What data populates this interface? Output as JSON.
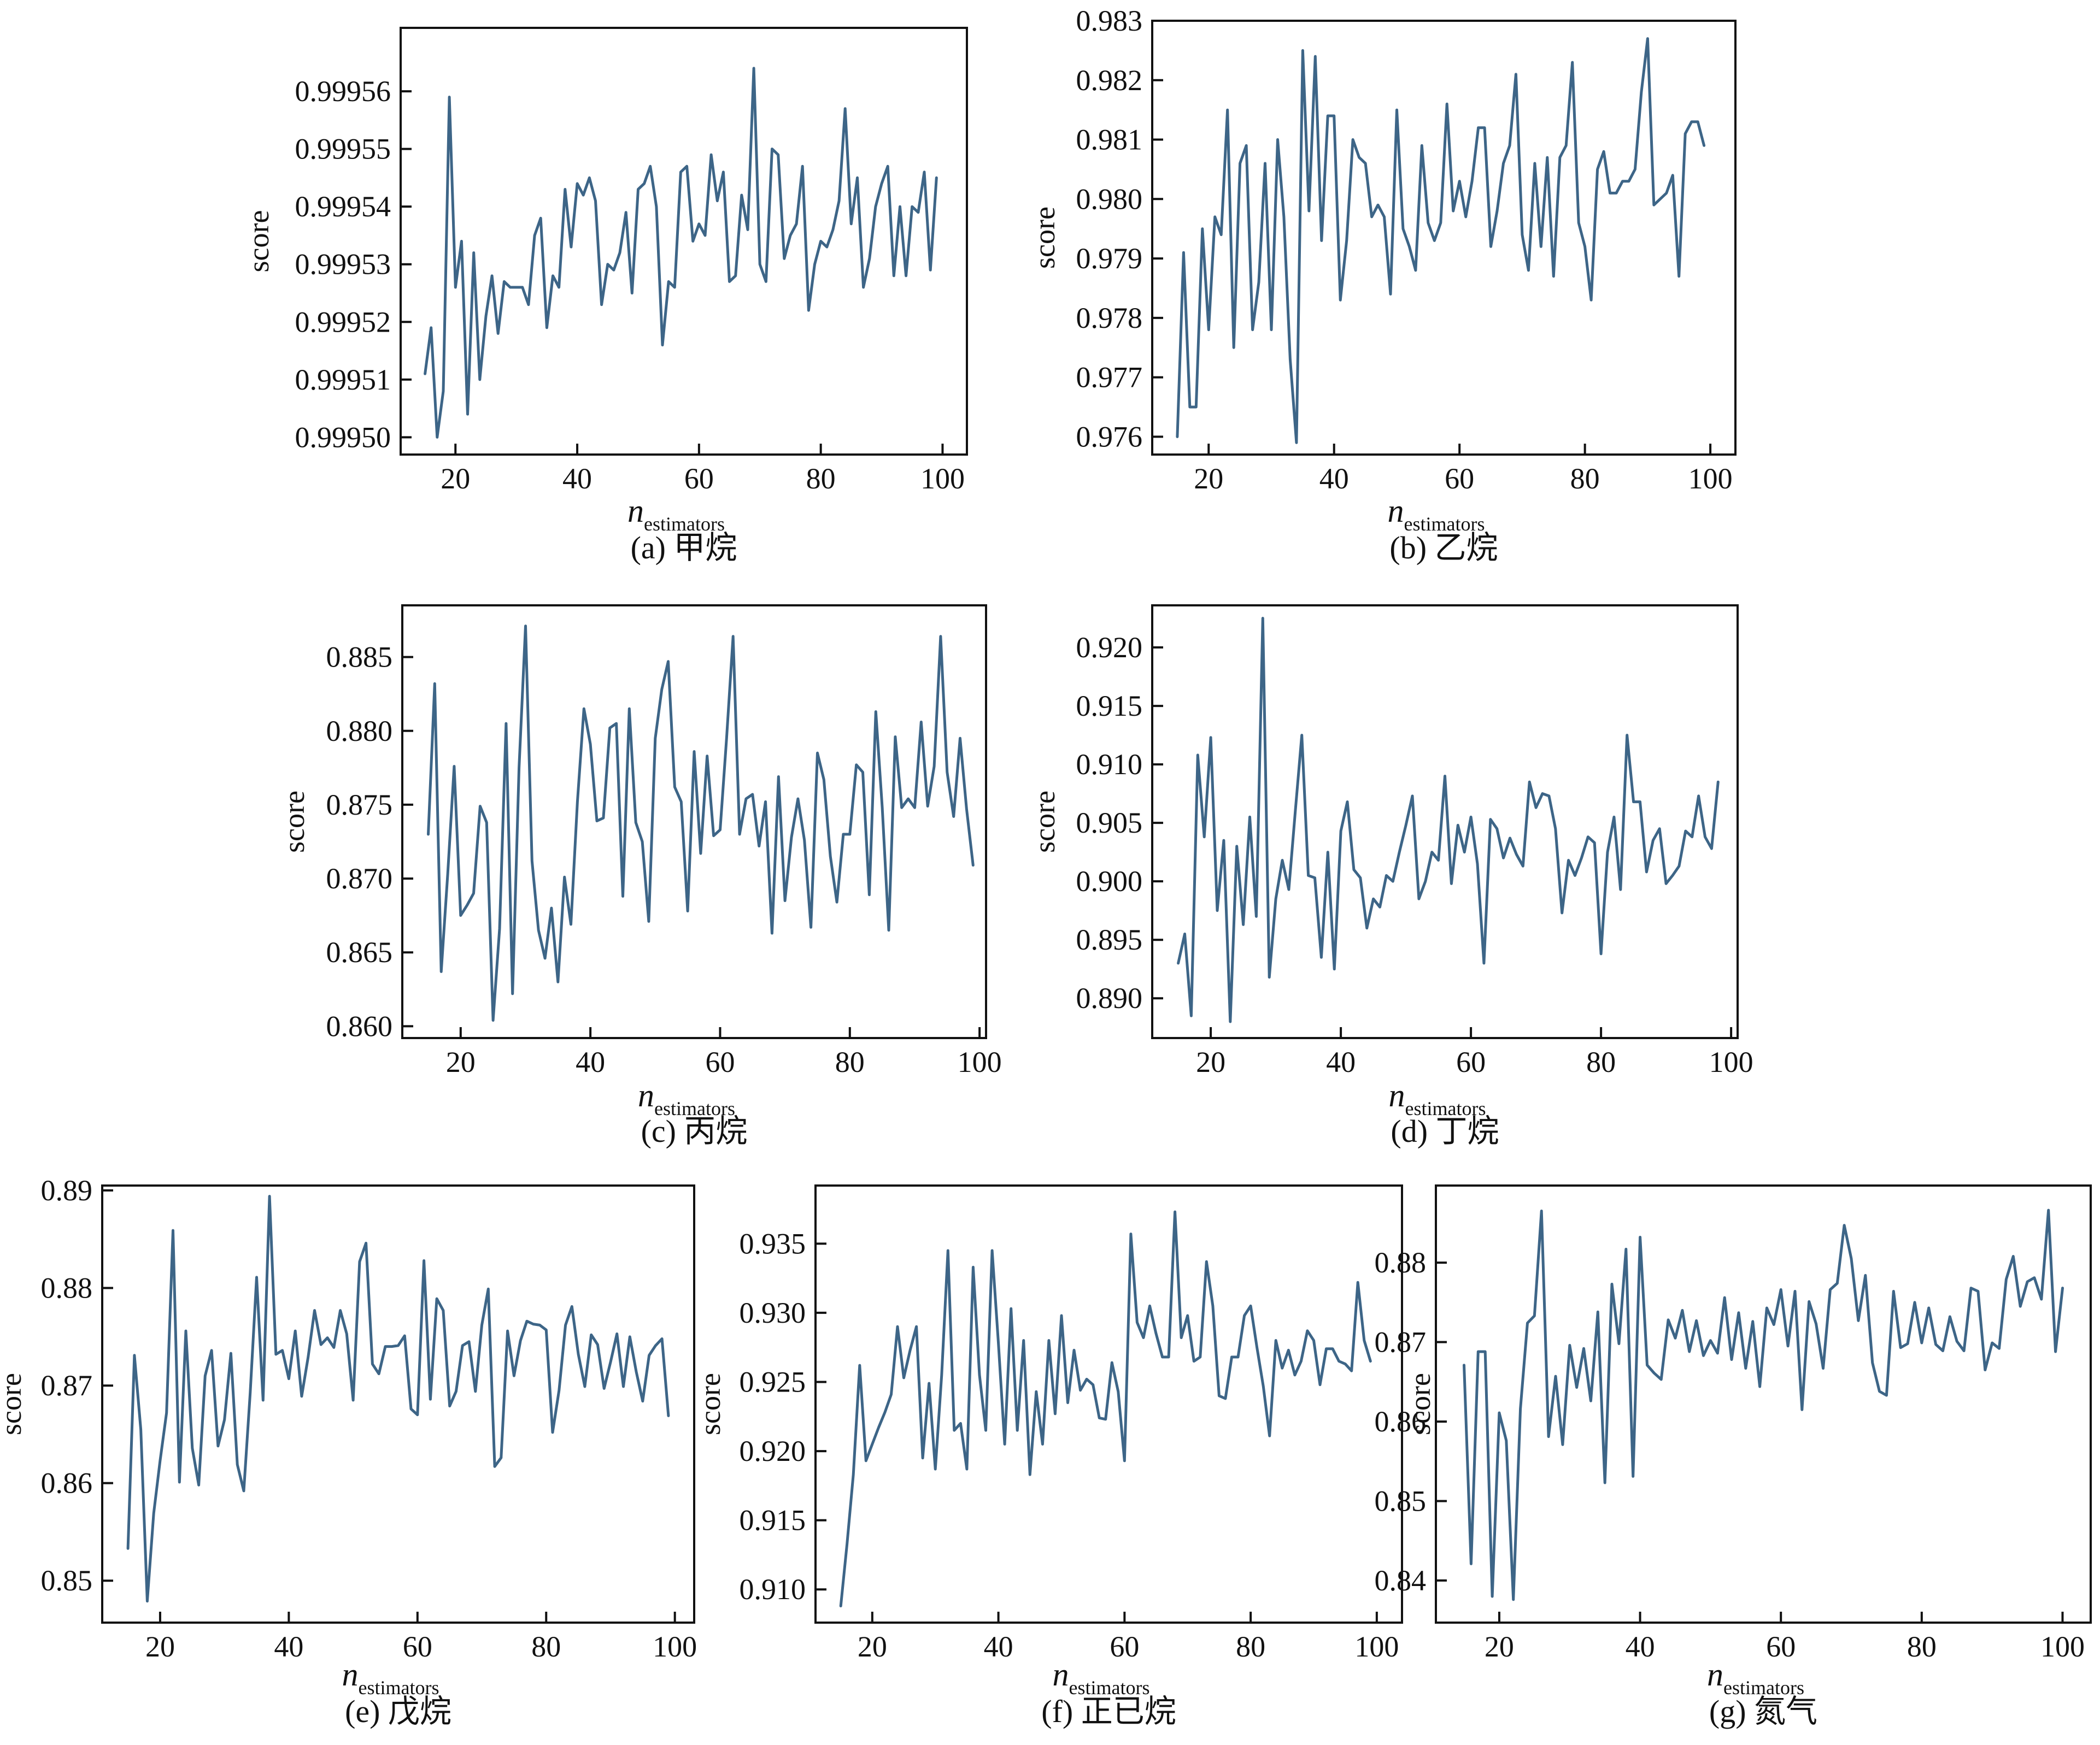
{
  "figure": {
    "background": "#ffffff",
    "series_color": "#3d6587"
  },
  "chart_data": [
    {
      "id": "a",
      "type": "line",
      "caption": "(a) 甲烷",
      "ylabel": "score",
      "xlabel": "n",
      "xlabel_sub": "estimators",
      "xlim": [
        11,
        104
      ],
      "ylim": [
        0.999497,
        0.999571
      ],
      "xticks": [
        20,
        40,
        60,
        80,
        100
      ],
      "xtick_labels": [
        "20",
        "40",
        "60",
        "80",
        "100"
      ],
      "yticks": [
        0.9995,
        0.99951,
        0.99952,
        0.99953,
        0.99954,
        0.99955,
        0.99956
      ],
      "ytick_labels": [
        "0.99950",
        "0.99951",
        "0.99952",
        "0.99953",
        "0.99954",
        "0.99955",
        "0.99956"
      ],
      "series": [
        {
          "name": "score",
          "x_start": 15,
          "values": [
            0.999511,
            0.999519,
            0.9995,
            0.999508,
            0.999559,
            0.999526,
            0.999534,
            0.999504,
            0.999532,
            0.99951,
            0.999521,
            0.999528,
            0.999518,
            0.999527,
            0.999526,
            0.999526,
            0.999526,
            0.999523,
            0.999535,
            0.999538,
            0.999519,
            0.999528,
            0.999526,
            0.999543,
            0.999533,
            0.999544,
            0.999542,
            0.999545,
            0.999541,
            0.999523,
            0.99953,
            0.999529,
            0.999532,
            0.999539,
            0.999525,
            0.999543,
            0.999544,
            0.999547,
            0.99954,
            0.999516,
            0.999527,
            0.999526,
            0.999546,
            0.999547,
            0.999534,
            0.999537,
            0.999535,
            0.999549,
            0.999541,
            0.999546,
            0.999527,
            0.999528,
            0.999542,
            0.999536,
            0.999564,
            0.99953,
            0.999527,
            0.99955,
            0.999549,
            0.999531,
            0.999535,
            0.999537,
            0.999547,
            0.999522,
            0.99953,
            0.999534,
            0.999533,
            0.999536,
            0.999541,
            0.999557,
            0.999537,
            0.999545,
            0.999526,
            0.999531,
            0.99954,
            0.999544,
            0.999547,
            0.999528,
            0.99954,
            0.999528,
            0.99954,
            0.999539,
            0.999546,
            0.999529,
            0.999545
          ]
        }
      ]
    },
    {
      "id": "b",
      "type": "line",
      "caption": "(b) 乙烷",
      "ylabel": "score",
      "xlabel": "n",
      "xlabel_sub": "estimators",
      "xlim": [
        11,
        104
      ],
      "ylim": [
        0.9757,
        0.983
      ],
      "xticks": [
        20,
        40,
        60,
        80,
        100
      ],
      "xtick_labels": [
        "20",
        "40",
        "60",
        "80",
        "100"
      ],
      "yticks": [
        0.976,
        0.977,
        0.978,
        0.979,
        0.98,
        0.981,
        0.982,
        0.983
      ],
      "ytick_labels": [
        "0.976",
        "0.977",
        "0.978",
        "0.979",
        "0.980",
        "0.981",
        "0.982",
        "0.983"
      ],
      "series": [
        {
          "name": "score",
          "x_start": 15,
          "values": [
            0.976,
            0.9791,
            0.9765,
            0.9765,
            0.9795,
            0.9778,
            0.9797,
            0.9794,
            0.9815,
            0.9775,
            0.9806,
            0.9809,
            0.9778,
            0.9786,
            0.9806,
            0.9778,
            0.981,
            0.9797,
            0.9773,
            0.9759,
            0.9825,
            0.9798,
            0.9824,
            0.9793,
            0.9814,
            0.9814,
            0.9783,
            0.9793,
            0.981,
            0.9807,
            0.9806,
            0.9797,
            0.9799,
            0.9797,
            0.9784,
            0.9815,
            0.9795,
            0.9792,
            0.9788,
            0.9809,
            0.9796,
            0.9793,
            0.9796,
            0.9816,
            0.9798,
            0.9803,
            0.9797,
            0.9803,
            0.9812,
            0.9812,
            0.9792,
            0.9798,
            0.9806,
            0.9809,
            0.9821,
            0.9794,
            0.9788,
            0.9806,
            0.9792,
            0.9807,
            0.9787,
            0.9807,
            0.9809,
            0.9823,
            0.9796,
            0.9792,
            0.9783,
            0.9805,
            0.9808,
            0.9801,
            0.9801,
            0.9803,
            0.9803,
            0.9805,
            0.9818,
            0.9827,
            0.9799,
            0.98,
            0.9801,
            0.9804,
            0.9787,
            0.9811,
            0.9813,
            0.9813,
            0.9809
          ]
        }
      ]
    },
    {
      "id": "c",
      "type": "line",
      "caption": "(c) 丙烷",
      "ylabel": "score",
      "xlabel": "n",
      "xlabel_sub": "estimators",
      "xlim": [
        11,
        101
      ],
      "ylim": [
        0.8592,
        0.8885
      ],
      "xticks": [
        20,
        40,
        60,
        80,
        100
      ],
      "xtick_labels": [
        "20",
        "40",
        "60",
        "80",
        "100"
      ],
      "yticks": [
        0.86,
        0.865,
        0.87,
        0.875,
        0.88,
        0.885
      ],
      "ytick_labels": [
        "0.860",
        "0.865",
        "0.870",
        "0.875",
        "0.880",
        "0.885"
      ],
      "series": [
        {
          "name": "score",
          "x_start": 15,
          "values": [
            0.873,
            0.8832,
            0.8637,
            0.8703,
            0.8776,
            0.8675,
            0.8682,
            0.869,
            0.8749,
            0.8738,
            0.8604,
            0.8666,
            0.8805,
            0.8622,
            0.8775,
            0.8871,
            0.8712,
            0.8665,
            0.8646,
            0.868,
            0.863,
            0.8701,
            0.8669,
            0.8752,
            0.8815,
            0.8791,
            0.8739,
            0.8741,
            0.8802,
            0.8805,
            0.8688,
            0.8815,
            0.8738,
            0.8725,
            0.8671,
            0.8795,
            0.8828,
            0.8847,
            0.8762,
            0.8752,
            0.8678,
            0.8786,
            0.8717,
            0.8783,
            0.8729,
            0.8733,
            0.8795,
            0.8864,
            0.873,
            0.8754,
            0.8757,
            0.8722,
            0.8752,
            0.8663,
            0.8769,
            0.8685,
            0.8728,
            0.8754,
            0.8726,
            0.8667,
            0.8785,
            0.8767,
            0.8715,
            0.8684,
            0.873,
            0.873,
            0.8777,
            0.8772,
            0.8689,
            0.8813,
            0.8748,
            0.8665,
            0.8796,
            0.8748,
            0.8754,
            0.8748,
            0.8806,
            0.8749,
            0.8776,
            0.8864,
            0.8772,
            0.8742,
            0.8795,
            0.8747,
            0.8709
          ]
        }
      ]
    },
    {
      "id": "d",
      "type": "line",
      "caption": "(d) 丁烷",
      "ylabel": "score",
      "xlabel": "n",
      "xlabel_sub": "estimators",
      "xlim": [
        11,
        101
      ],
      "ylim": [
        0.8866,
        0.9236
      ],
      "xticks": [
        20,
        40,
        60,
        80,
        100
      ],
      "xtick_labels": [
        "20",
        "40",
        "60",
        "80",
        "100"
      ],
      "yticks": [
        0.89,
        0.895,
        0.9,
        0.905,
        0.91,
        0.915,
        0.92
      ],
      "ytick_labels": [
        "0.890",
        "0.895",
        "0.900",
        "0.905",
        "0.910",
        "0.915",
        "0.920"
      ],
      "series": [
        {
          "name": "score",
          "x_start": 15,
          "values": [
            0.893,
            0.8955,
            0.8885,
            0.9108,
            0.9038,
            0.9123,
            0.8975,
            0.9035,
            0.888,
            0.903,
            0.8963,
            0.9055,
            0.897,
            0.9225,
            0.8918,
            0.8985,
            0.9018,
            0.8993,
            0.906,
            0.9125,
            0.9005,
            0.9003,
            0.8935,
            0.9025,
            0.8925,
            0.9043,
            0.9068,
            0.901,
            0.9003,
            0.896,
            0.8985,
            0.8978,
            0.9005,
            0.9,
            0.9025,
            0.9048,
            0.9073,
            0.8985,
            0.9,
            0.9025,
            0.9018,
            0.909,
            0.8998,
            0.9048,
            0.9025,
            0.9055,
            0.9015,
            0.893,
            0.9053,
            0.9045,
            0.902,
            0.9037,
            0.9023,
            0.9013,
            0.9085,
            0.9063,
            0.9075,
            0.9073,
            0.9045,
            0.8973,
            0.9018,
            0.9005,
            0.902,
            0.9038,
            0.9033,
            0.8938,
            0.9025,
            0.9055,
            0.8993,
            0.9125,
            0.9068,
            0.9068,
            0.9008,
            0.9035,
            0.9045,
            0.8998,
            0.9005,
            0.9013,
            0.9043,
            0.9038,
            0.9073,
            0.9038,
            0.9028,
            0.9085
          ]
        }
      ]
    },
    {
      "id": "e",
      "type": "line",
      "caption": "(e) 戊烷",
      "ylabel": "score",
      "xlabel": "n",
      "xlabel_sub": "estimators",
      "xlim": [
        11,
        103
      ],
      "ylim": [
        0.8457,
        0.8905
      ],
      "xticks": [
        20,
        40,
        60,
        80,
        100
      ],
      "xtick_labels": [
        "20",
        "40",
        "60",
        "80",
        "100"
      ],
      "yticks": [
        0.85,
        0.86,
        0.87,
        0.88,
        0.89
      ],
      "ytick_labels": [
        "0.85",
        "0.86",
        "0.87",
        "0.88",
        "0.89"
      ],
      "series": [
        {
          "name": "score",
          "x_start": 15,
          "values": [
            0.8533,
            0.8731,
            0.8655,
            0.8479,
            0.8569,
            0.8623,
            0.8672,
            0.8859,
            0.8601,
            0.8756,
            0.8636,
            0.8598,
            0.871,
            0.8736,
            0.8638,
            0.8665,
            0.8733,
            0.8619,
            0.8592,
            0.8693,
            0.8811,
            0.8685,
            0.8894,
            0.8732,
            0.8736,
            0.8707,
            0.8756,
            0.8689,
            0.8729,
            0.8777,
            0.8742,
            0.8749,
            0.8739,
            0.8777,
            0.8753,
            0.8685,
            0.8827,
            0.8846,
            0.8722,
            0.8712,
            0.874,
            0.874,
            0.8741,
            0.8751,
            0.8676,
            0.867,
            0.8828,
            0.8686,
            0.8789,
            0.8777,
            0.8679,
            0.8694,
            0.8741,
            0.8745,
            0.8694,
            0.8762,
            0.8799,
            0.8617,
            0.8626,
            0.8756,
            0.871,
            0.8746,
            0.8766,
            0.8763,
            0.8762,
            0.8757,
            0.8652,
            0.8695,
            0.8762,
            0.8781,
            0.8732,
            0.8699,
            0.8752,
            0.8742,
            0.8697,
            0.8724,
            0.8753,
            0.8699,
            0.875,
            0.8714,
            0.8684,
            0.8731,
            0.8741,
            0.8748,
            0.8669
          ]
        }
      ]
    },
    {
      "id": "f",
      "type": "line",
      "caption": "(f) 正已烷",
      "ylabel": "score",
      "xlabel": "n",
      "xlabel_sub": "estimators",
      "xlim": [
        11,
        104
      ],
      "ylim": [
        0.9076,
        0.9392
      ],
      "xticks": [
        20,
        40,
        60,
        80,
        100
      ],
      "xtick_labels": [
        "20",
        "40",
        "60",
        "80",
        "100"
      ],
      "yticks": [
        0.91,
        0.915,
        0.92,
        0.925,
        0.93,
        0.935
      ],
      "ytick_labels": [
        "0.910",
        "0.915",
        "0.920",
        "0.925",
        "0.930",
        "0.935"
      ],
      "series": [
        {
          "name": "score",
          "x_start": 15,
          "values": [
            0.9088,
            0.9133,
            0.9183,
            0.9262,
            0.9193,
            0.9205,
            0.9217,
            0.9228,
            0.9241,
            0.929,
            0.9253,
            0.9273,
            0.929,
            0.9195,
            0.9249,
            0.9187,
            0.9255,
            0.9345,
            0.9215,
            0.922,
            0.9187,
            0.9333,
            0.9255,
            0.9215,
            0.9345,
            0.9278,
            0.9205,
            0.9303,
            0.9215,
            0.928,
            0.9183,
            0.9243,
            0.9205,
            0.928,
            0.9227,
            0.9298,
            0.9235,
            0.9273,
            0.9244,
            0.9252,
            0.9248,
            0.9224,
            0.9223,
            0.9264,
            0.9243,
            0.9193,
            0.9357,
            0.9293,
            0.9282,
            0.9305,
            0.9285,
            0.9268,
            0.9268,
            0.9373,
            0.9282,
            0.9298,
            0.9265,
            0.9268,
            0.9337,
            0.9305,
            0.924,
            0.9238,
            0.9268,
            0.9268,
            0.9298,
            0.9305,
            0.9275,
            0.9247,
            0.9211,
            0.928,
            0.926,
            0.9273,
            0.9255,
            0.9265,
            0.9287,
            0.928,
            0.9248,
            0.9274,
            0.9274,
            0.9265,
            0.9263,
            0.9258,
            0.9322,
            0.928,
            0.9265
          ]
        }
      ]
    },
    {
      "id": "g",
      "type": "line",
      "caption": "(g) 氮气",
      "ylabel": "score",
      "xlabel": "n",
      "xlabel_sub": "estimators",
      "xlim": [
        11,
        104
      ],
      "ylim": [
        0.8347,
        0.8897
      ],
      "xticks": [
        20,
        40,
        60,
        80,
        100
      ],
      "xtick_labels": [
        "20",
        "40",
        "60",
        "80",
        "100"
      ],
      "yticks": [
        0.84,
        0.85,
        0.86,
        0.87,
        0.88
      ],
      "ytick_labels": [
        "0.84",
        "0.85",
        "0.86",
        "0.87",
        "0.88"
      ],
      "series": [
        {
          "name": "score",
          "x_start": 15,
          "values": [
            0.8671,
            0.8421,
            0.8688,
            0.8688,
            0.838,
            0.8611,
            0.8576,
            0.8376,
            0.8616,
            0.8724,
            0.8733,
            0.8865,
            0.8581,
            0.8657,
            0.8571,
            0.8696,
            0.8643,
            0.8692,
            0.8626,
            0.8738,
            0.8523,
            0.8773,
            0.8698,
            0.8817,
            0.8531,
            0.8832,
            0.8671,
            0.8661,
            0.8653,
            0.8728,
            0.8705,
            0.874,
            0.8688,
            0.8727,
            0.8683,
            0.8702,
            0.8686,
            0.8756,
            0.8678,
            0.8737,
            0.8667,
            0.8726,
            0.8644,
            0.8743,
            0.8722,
            0.8766,
            0.8695,
            0.8764,
            0.8615,
            0.8751,
            0.8723,
            0.8667,
            0.8766,
            0.8774,
            0.8847,
            0.8805,
            0.8727,
            0.8784,
            0.8674,
            0.8638,
            0.8633,
            0.8764,
            0.8693,
            0.8698,
            0.875,
            0.8699,
            0.8743,
            0.8697,
            0.8689,
            0.8732,
            0.8701,
            0.8689,
            0.8768,
            0.8764,
            0.8665,
            0.8699,
            0.8692,
            0.8779,
            0.8808,
            0.8745,
            0.8776,
            0.8781,
            0.8754,
            0.8866,
            0.8688,
            0.8768
          ]
        }
      ]
    }
  ]
}
